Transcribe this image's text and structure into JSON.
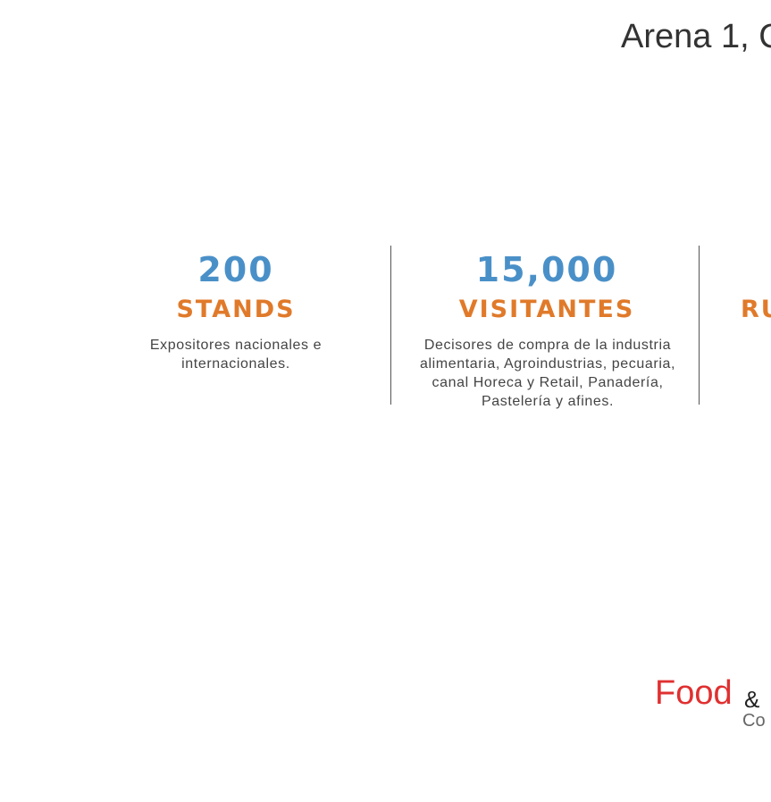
{
  "header": {
    "title": "Arena 1, C"
  },
  "stats": [
    {
      "number": "200",
      "label": "STANDS",
      "description": "Expositores nacionales e internacionales."
    },
    {
      "number": "15,000",
      "label": "VISITANTES",
      "description": "Decisores de compra de la industria alimentaria, Agroindustrias, pecuaria, canal Horeca y Retail, Panadería, Pastelería y afines."
    },
    {
      "label": "RU"
    }
  ],
  "logo": {
    "word": "Food",
    "amp": "&",
    "sub": "Co"
  }
}
